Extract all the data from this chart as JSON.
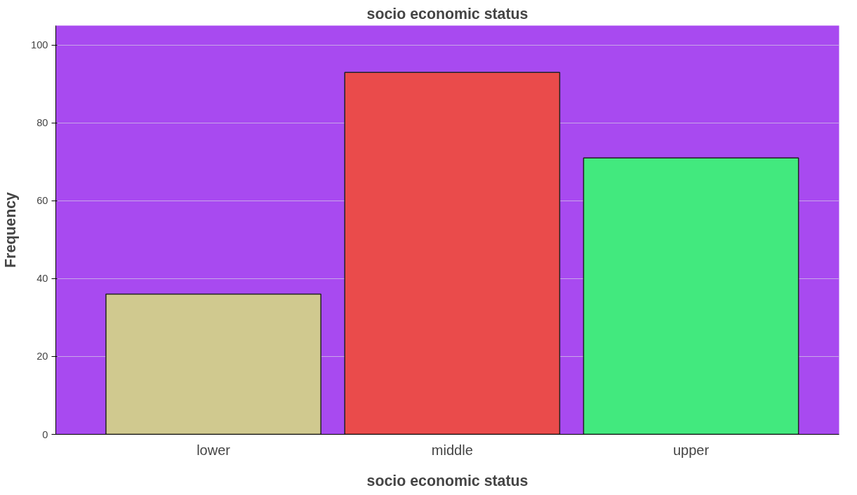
{
  "chart_data": {
    "type": "bar",
    "title": "socio economic status",
    "xlabel": "socio economic status",
    "ylabel": "Frequency",
    "categories": [
      "lower",
      "middle",
      "upper"
    ],
    "values": [
      36,
      93,
      71
    ],
    "colors": [
      "#d0c98f",
      "#ea4b4b",
      "#42e97e"
    ],
    "ylim": [
      0,
      105
    ],
    "yticks": [
      0,
      20,
      40,
      60,
      80,
      100
    ],
    "grid": "y"
  }
}
